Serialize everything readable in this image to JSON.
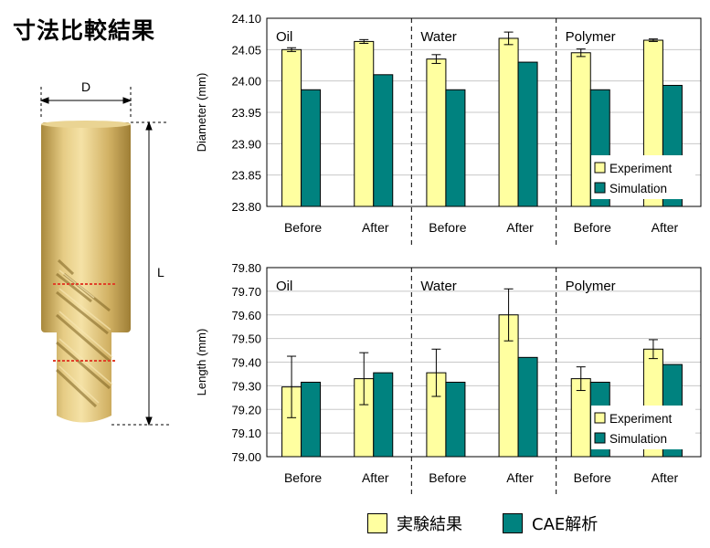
{
  "page_title": "寸法比較結果",
  "diagram": {
    "d_label": "D",
    "l_label": "L"
  },
  "colors": {
    "experiment": "#FFFFA0",
    "simulation": "#00827F",
    "grid": "#C8C8C8"
  },
  "bottom_legend": {
    "experiment_label": "実験結果",
    "simulation_label": "CAE解析"
  },
  "chart_data": [
    {
      "type": "bar",
      "ylabel": "Diameter (mm)",
      "ylim": [
        23.8,
        24.1
      ],
      "yticks": [
        "23.80",
        "23.85",
        "23.90",
        "23.95",
        "24.00",
        "24.05",
        "24.10"
      ],
      "groups": [
        "Oil",
        "Water",
        "Polymer"
      ],
      "categories": [
        "Before",
        "After",
        "Before",
        "After",
        "Before",
        "After"
      ],
      "legend": {
        "placement": "bottom-right",
        "entries": [
          "Experiment",
          "Simulation"
        ]
      },
      "grid": true,
      "series": [
        {
          "name": "Experiment",
          "values": [
            24.05,
            24.063,
            24.035,
            24.068,
            24.045,
            24.065
          ],
          "error": [
            0.003,
            0.003,
            0.007,
            0.01,
            0.006,
            0.002
          ]
        },
        {
          "name": "Simulation",
          "values": [
            23.986,
            24.01,
            23.986,
            24.03,
            23.986,
            23.993
          ]
        }
      ]
    },
    {
      "type": "bar",
      "ylabel": "Length (mm)",
      "ylim": [
        79.0,
        79.8
      ],
      "yticks": [
        "79.00",
        "79.10",
        "79.20",
        "79.30",
        "79.40",
        "79.50",
        "79.60",
        "79.70",
        "79.80"
      ],
      "groups": [
        "Oil",
        "Water",
        "Polymer"
      ],
      "categories": [
        "Before",
        "After",
        "Before",
        "After",
        "Before",
        "After"
      ],
      "legend": {
        "placement": "bottom-right",
        "entries": [
          "Experiment",
          "Simulation"
        ]
      },
      "grid": true,
      "series": [
        {
          "name": "Experiment",
          "values": [
            79.295,
            79.33,
            79.355,
            79.6,
            79.33,
            79.455
          ],
          "error": [
            0.13,
            0.11,
            0.1,
            0.11,
            0.05,
            0.04
          ]
        },
        {
          "name": "Simulation",
          "values": [
            79.315,
            79.355,
            79.315,
            79.42,
            79.315,
            79.39
          ]
        }
      ]
    }
  ]
}
